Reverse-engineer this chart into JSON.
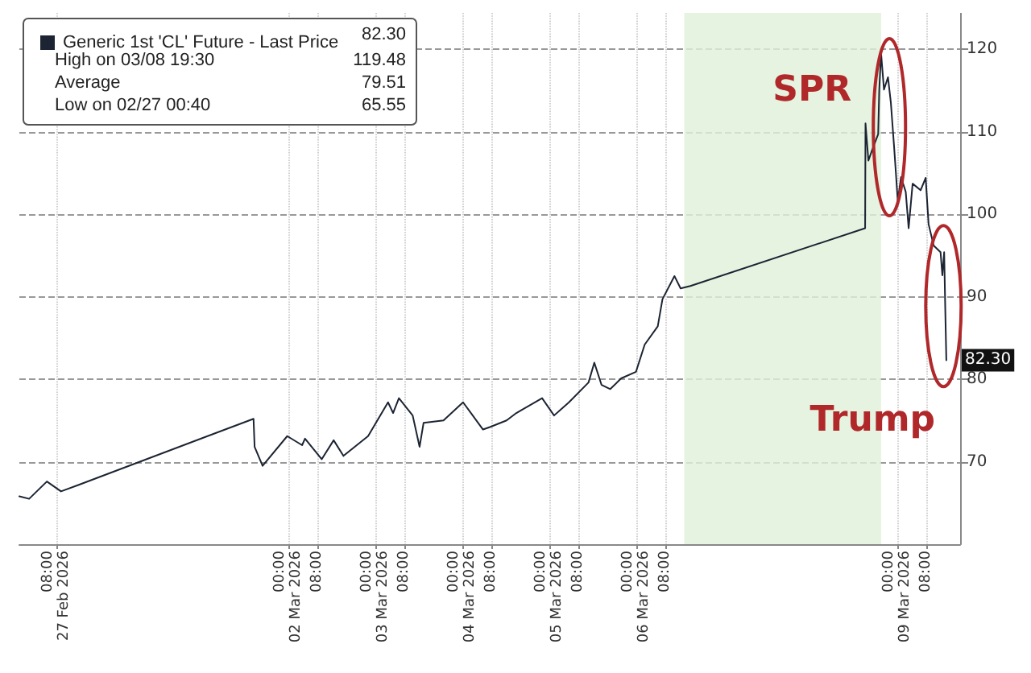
{
  "chart_data": {
    "type": "line",
    "x": [
      "2026-02-26T21:48",
      "2026-02-27T00:30",
      "2026-02-27T05:24",
      "2026-02-27T09:18",
      "2026-02-27T14:12",
      "2026-03-01T14:24",
      "2026-03-01T14:42",
      "2026-03-01T16:54",
      "2026-03-01T23:42",
      "2026-03-02T03:48",
      "2026-03-02T04:36",
      "2026-03-02T09:12",
      "2026-03-02T12:30",
      "2026-03-02T15:12",
      "2026-03-02T22:00",
      "2026-03-03T03:30",
      "2026-03-03T04:54",
      "2026-03-03T06:30",
      "2026-03-03T10:18",
      "2026-03-03T12:12",
      "2026-03-03T13:18",
      "2026-03-03T18:48",
      "2026-03-04T00:12",
      "2026-03-04T05:42",
      "2026-03-04T07:36",
      "2026-03-04T12:12",
      "2026-03-04T14:54",
      "2026-03-04T22:00",
      "2026-03-05T01:18",
      "2026-03-05T05:24",
      "2026-03-05T10:48",
      "2026-03-05T12:24",
      "2026-03-05T14:24",
      "2026-03-05T16:48",
      "2026-03-05T19:48",
      "2026-03-05T23:54",
      "2026-03-06T02:18",
      "2026-03-06T05:54",
      "2026-03-06T07:12",
      "2026-03-06T10:30",
      "2026-03-06T12:12",
      "2026-03-06T14:54",
      "2026-03-08T15:06",
      "2026-03-08T15:12",
      "2026-03-08T16:00",
      "2026-03-08T17:18",
      "2026-03-08T18:42",
      "2026-03-08T19:00",
      "2026-03-08T19:30",
      "2026-03-08T20:18",
      "2026-03-08T21:24",
      "2026-03-08T22:12",
      "2026-03-08T23:06",
      "2026-03-08T23:36",
      "2026-03-09T00:06",
      "2026-03-09T01:00",
      "2026-03-09T02:18",
      "2026-03-09T03:06",
      "2026-03-09T04:12",
      "2026-03-09T06:24",
      "2026-03-09T07:48",
      "2026-03-09T08:36",
      "2026-03-09T10:00",
      "2026-03-09T11:54",
      "2026-03-09T12:24",
      "2026-03-09T12:54",
      "2026-03-09T13:12",
      "2026-03-09T13:30"
    ],
    "series": [
      {
        "name": "Generic 1st 'CL' Future - Last Price",
        "color": "#1c2433",
        "values": [
          65.8,
          65.5,
          67.6,
          66.4,
          67.2,
          75.2,
          71.8,
          69.5,
          73.1,
          72.0,
          72.8,
          70.3,
          72.6,
          70.7,
          73.1,
          77.2,
          75.9,
          77.7,
          75.6,
          71.8,
          74.7,
          75.0,
          77.2,
          73.9,
          74.2,
          75.0,
          75.9,
          77.7,
          75.6,
          77.2,
          79.6,
          82.0,
          79.3,
          78.8,
          80.1,
          80.9,
          84.2,
          86.4,
          89.7,
          92.5,
          91.0,
          91.3,
          98.3,
          111.0,
          106.5,
          108.1,
          109.7,
          115.1,
          119.5,
          115.1,
          116.6,
          113.5,
          108.1,
          104.9,
          101.6,
          104.5,
          102.7,
          98.3,
          103.7,
          102.9,
          104.4,
          98.8,
          96.2,
          95.4,
          92.6,
          95.4,
          88.6,
          82.3
        ]
      }
    ],
    "xlim": [
      "2026-02-26T21:48",
      "2026-03-09T17:18"
    ],
    "ylim": [
      60,
      124.4
    ],
    "xticks": [
      {
        "value": "2026-02-27T08:00",
        "label": "08:00\n27 Feb 2026"
      },
      {
        "value": "2026-03-02T00:00",
        "label": "00:00\n02 Mar 2026"
      },
      {
        "value": "2026-03-02T08:00",
        "label": "08:00"
      },
      {
        "value": "2026-03-03T00:00",
        "label": "00:00\n03 Mar 2026"
      },
      {
        "value": "2026-03-03T08:00",
        "label": "08:00"
      },
      {
        "value": "2026-03-04T00:00",
        "label": "00:00\n04 Mar 2026"
      },
      {
        "value": "2026-03-04T08:00",
        "label": "08:00"
      },
      {
        "value": "2026-03-05T00:00",
        "label": "00:00\n05 Mar 2026"
      },
      {
        "value": "2026-03-05T08:00",
        "label": "08:00"
      },
      {
        "value": "2026-03-06T00:00",
        "label": "00:00\n06 Mar 2026"
      },
      {
        "value": "2026-03-06T08:00",
        "label": "08:00"
      },
      {
        "value": "2026-03-09T00:00",
        "label": "00:00\n09 Mar 2026"
      },
      {
        "value": "2026-03-09T08:00",
        "label": "08:00"
      }
    ],
    "yticks": [
      70,
      80,
      90,
      100,
      110,
      120
    ],
    "bands": [
      {
        "axis": "x",
        "from": "2026-03-06T13:12",
        "to": "2026-03-08T19:30",
        "color": "#dff0d8"
      }
    ],
    "annotations": [
      "82.30",
      "High on 03/08 19:30",
      "119.48",
      "Average",
      "79.51",
      "Low on 02/27 00:40",
      "65.55",
      "SPR",
      "Trump",
      "82.30"
    ],
    "grid": true,
    "legend": "top left",
    "line_style": "solid",
    "marker": "none"
  }
}
